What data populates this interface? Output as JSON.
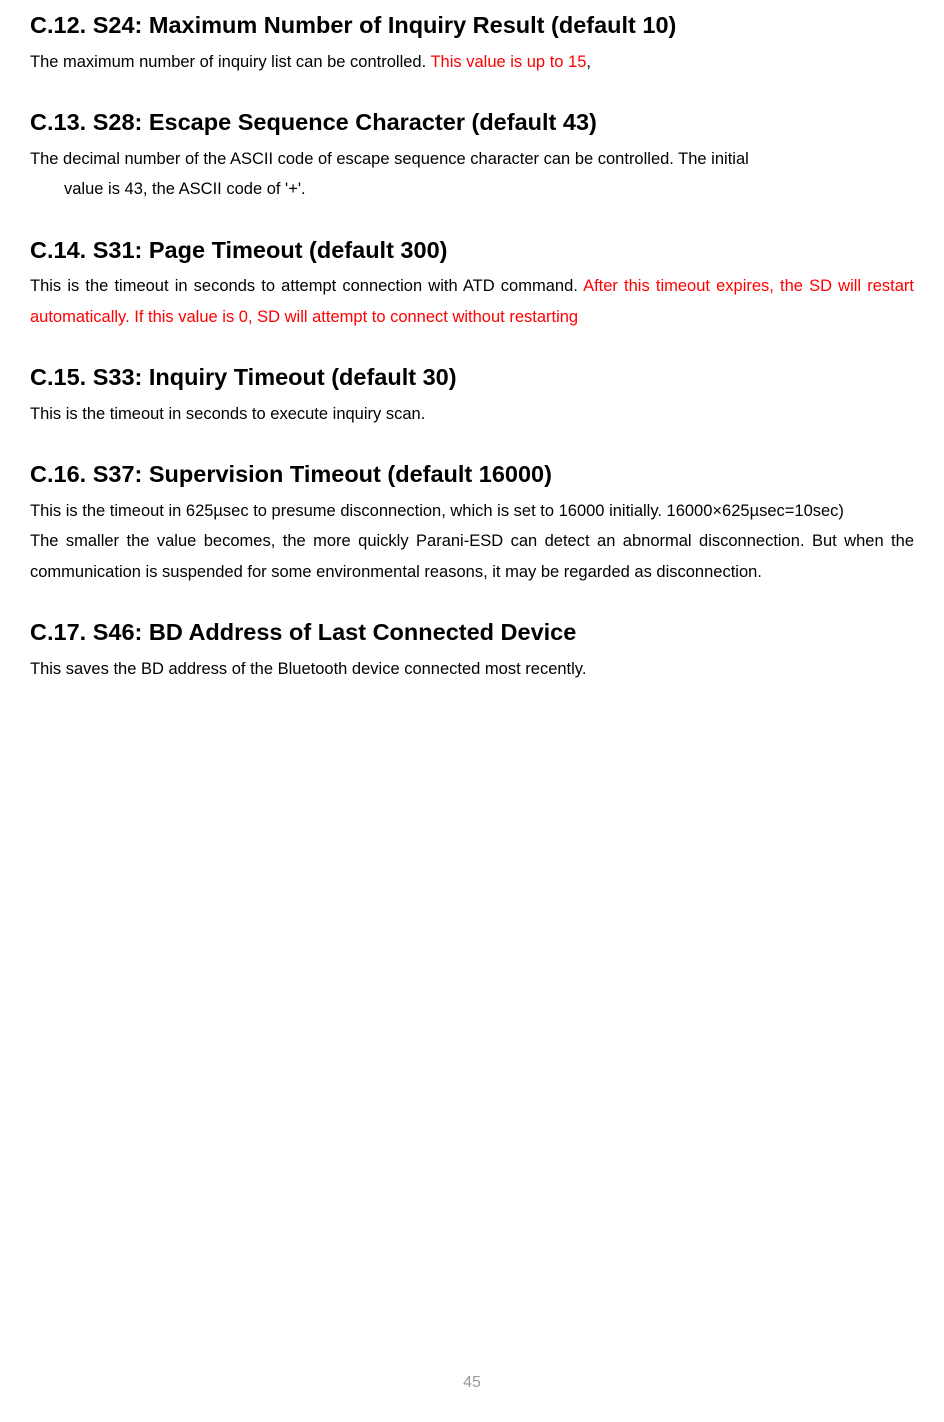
{
  "sections": {
    "c12": {
      "heading": "C.12. S24: Maximum Number of Inquiry Result (default 10)",
      "body_p1": "The maximum number of inquiry list can be controlled. ",
      "body_red": "This value is up to 15",
      "body_p2": ","
    },
    "c13": {
      "heading": "C.13. S28: Escape Sequence Character (default 43)",
      "body_line1": "The decimal number of the ASCII code of escape sequence character can be controlled. The initial",
      "body_line2": "value is 43, the ASCII code of '+'."
    },
    "c14": {
      "heading": "C.14. S31: Page Timeout (default 300)",
      "body_p1": "This is the timeout in seconds to attempt connection with ATD command. ",
      "body_red": "After this timeout expires, the SD will restart automatically. If this value is 0, SD will attempt to connect without restarting"
    },
    "c15": {
      "heading": "C.15. S33: Inquiry Timeout (default 30)",
      "body": "This is the timeout in seconds to execute inquiry scan."
    },
    "c16": {
      "heading": "C.16. S37: Supervision Timeout (default 16000)",
      "body_p1": "This is the timeout in 625µsec to presume disconnection, which is set to 16000 initially. 16000×625µsec=10sec)",
      "body_p2": "The smaller the value becomes, the more quickly Parani-ESD can detect an abnormal disconnection. But when the communication is suspended for some environmental reasons, it may be regarded as disconnection."
    },
    "c17": {
      "heading": "C.17. S46: BD Address of Last Connected Device",
      "body": "This saves the BD address of the Bluetooth device connected most recently."
    }
  },
  "page_number": "45"
}
